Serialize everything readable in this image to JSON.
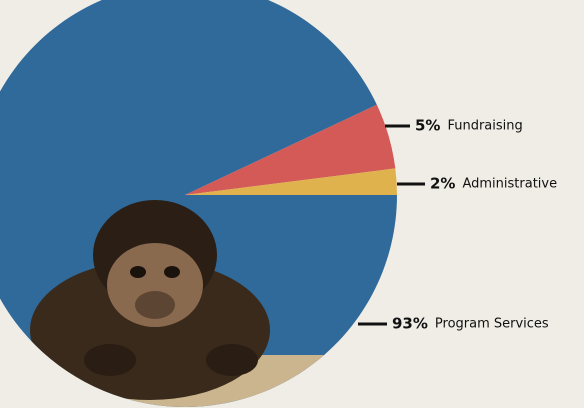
{
  "chart_data": {
    "type": "pie",
    "categories": [
      "Program Services",
      "Fundraising",
      "Administrative"
    ],
    "values": [
      93,
      5,
      2
    ],
    "value_labels": [
      "93%",
      "5%",
      "2%"
    ],
    "colors": [
      "#2f6a9a",
      "#d35a57",
      "#e0b24d"
    ]
  }
}
